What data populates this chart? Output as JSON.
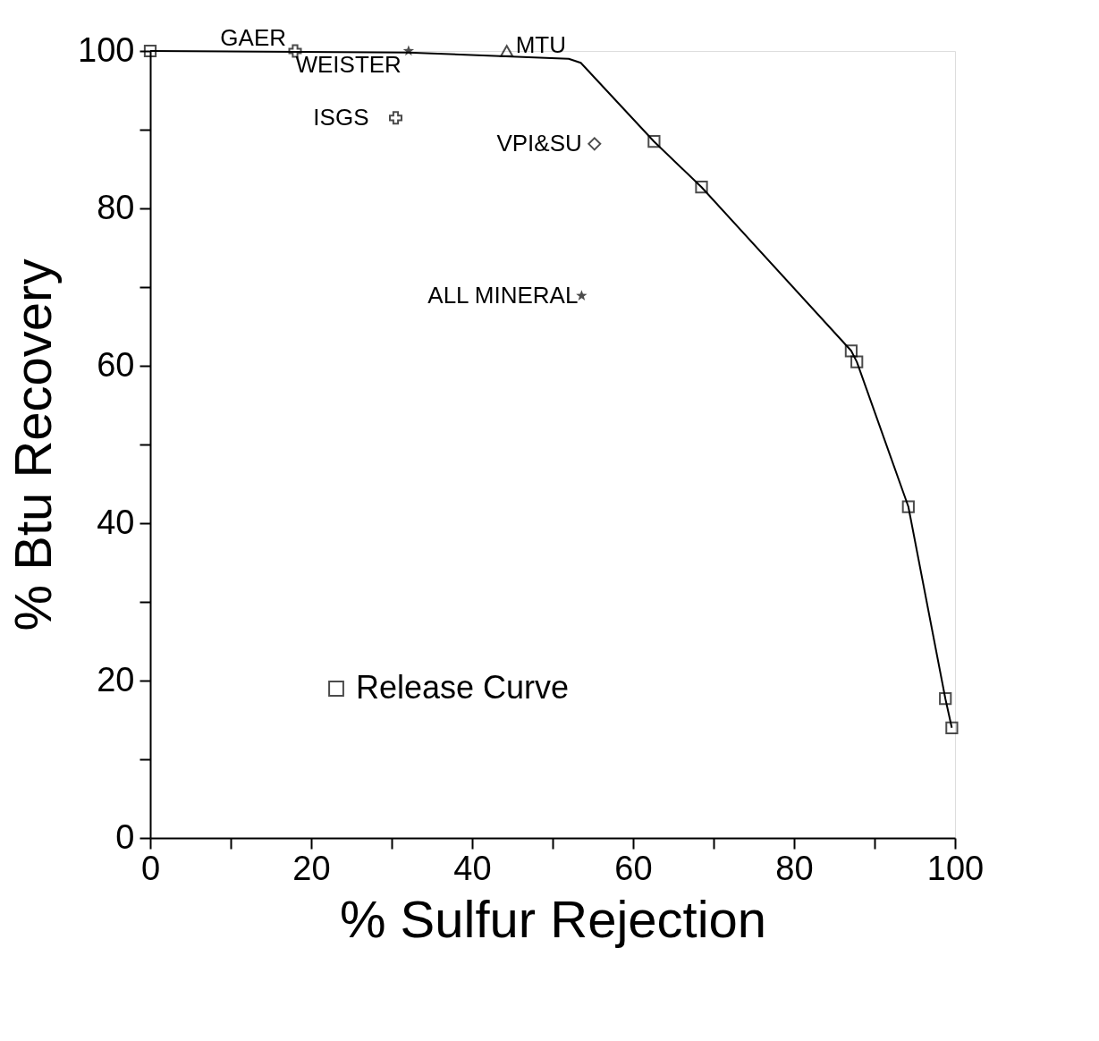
{
  "chart_data": {
    "type": "line",
    "xlabel": "% Sulfur Rejection",
    "ylabel": "% Btu Recovery",
    "xlim": [
      0,
      100
    ],
    "ylim": [
      0,
      100
    ],
    "xticks": [
      0,
      {
        "value": 10,
        "label": null
      },
      20,
      {
        "value": 30,
        "label": null
      },
      40,
      {
        "value": 50,
        "label": null
      },
      60,
      {
        "value": 70,
        "label": null
      },
      80,
      {
        "value": 90,
        "label": null
      },
      100
    ],
    "yticks": [
      0,
      {
        "value": 10,
        "label": null
      },
      20,
      {
        "value": 30,
        "label": null
      },
      40,
      {
        "value": 50,
        "label": null
      },
      60,
      {
        "value": 70,
        "label": null
      },
      80,
      {
        "value": 90,
        "label": null
      },
      100
    ],
    "grid": false,
    "legend": "bottom left",
    "line_style": "solid",
    "series": [
      {
        "marker": "none",
        "color": "#000000",
        "x": [
          0,
          32,
          52,
          53.5,
          62.6,
          68.5,
          87.1,
          87.8,
          94.2,
          98.8,
          99.6
        ],
        "values": [
          100,
          99.8,
          99,
          98.5,
          88.5,
          82.7,
          61.9,
          60.5,
          42.1,
          17.7,
          14.0
        ]
      },
      {
        "name": "Release Curve",
        "type": "scatter",
        "marker": "square",
        "color": "#000000",
        "x": [
          0,
          62.6,
          68.5,
          87.1,
          87.8,
          94.2,
          98.8,
          99.6
        ],
        "values": [
          100,
          88.5,
          82.7,
          61.9,
          60.5,
          42.1,
          17.7,
          14.0
        ]
      },
      {
        "name": "GAER",
        "type": "scatter",
        "marker": "cross",
        "color": "#000000",
        "x": [
          18.0
        ],
        "values": [
          100
        ]
      },
      {
        "name": "WEISTER",
        "type": "scatter",
        "marker": "star",
        "color": "#000000",
        "x": [
          32.1
        ],
        "values": [
          100
        ]
      },
      {
        "name": "MTU",
        "type": "scatter",
        "marker": "triangle",
        "color": "#000000",
        "x": [
          44.3
        ],
        "values": [
          100
        ]
      },
      {
        "name": "ISGS",
        "type": "scatter",
        "marker": "cross",
        "color": "#000000",
        "x": [
          30.5
        ],
        "values": [
          91.5
        ]
      },
      {
        "name": "VPI&SU",
        "type": "scatter",
        "marker": "diamond",
        "color": "#000000",
        "x": [
          55.2
        ],
        "values": [
          88.2
        ]
      },
      {
        "name": "ALL MINERAL",
        "type": "scatter",
        "marker": "star",
        "color": "#000000",
        "x": [
          53.6
        ],
        "values": [
          68.9
        ]
      }
    ]
  }
}
